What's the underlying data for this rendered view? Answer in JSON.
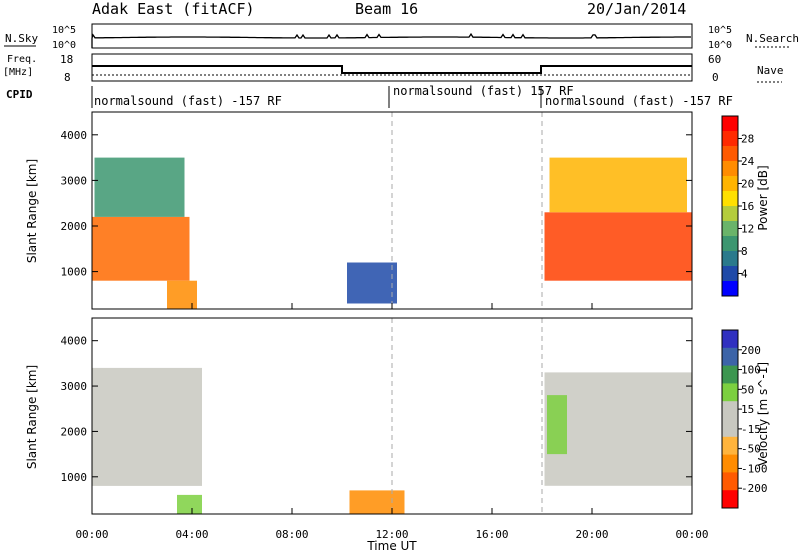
{
  "header": {
    "radar": "Adak East (fitACF)",
    "beam": "Beam 16",
    "date": "20/Jan/2014"
  },
  "strip_labels": {
    "nsky": "N.Sky",
    "nsky_ticks": [
      "10^5",
      "10^0"
    ],
    "nsearch": "N.Search",
    "nsearch_ticks": [
      "10^5",
      "10^0"
    ],
    "freq_line1": "Freq.",
    "freq_line2": "[MHz]",
    "freq_ticks": [
      "18",
      "8"
    ],
    "nave": "Nave",
    "nave_ticks": [
      "60",
      "0"
    ],
    "cpid": "CPID"
  },
  "cpid_segments": [
    {
      "start_h": 0,
      "end_h": 12,
      "label": "normalsound (fast) -157 RF"
    },
    {
      "start_h": 12,
      "end_h": 18,
      "label": "normalsound (fast) 157 RF"
    },
    {
      "start_h": 18,
      "end_h": 24,
      "label": "normalsound (fast) -157 RF"
    }
  ],
  "chart_data": [
    {
      "type": "heatmap",
      "panel": "power",
      "xlabel": "",
      "ylabel": "Slant Range [km]",
      "xlim": [
        0,
        24
      ],
      "ylim": [
        180,
        4500
      ],
      "yticks": [
        1000,
        2000,
        3000,
        4000
      ],
      "colorbar_label": "Power [dB]",
      "colorbar_ticks": [
        "28",
        "24",
        "20",
        "16",
        "12",
        "8",
        "4"
      ],
      "colorbar_colors": [
        "#ff0000",
        "#ff2a00",
        "#ff5a00",
        "#ff8c00",
        "#ffb400",
        "#ffe000",
        "#b4cc3c",
        "#6ab46a",
        "#3c9670",
        "#2a7a8c",
        "#1f4aa8",
        "#0000ff"
      ],
      "regions": [
        {
          "name": "morning-band",
          "t0": 0.0,
          "t1": 3.9,
          "r0": 800,
          "r1": 2200,
          "fill": "#ff6a00"
        },
        {
          "name": "morning-upper",
          "t0": 0.1,
          "t1": 3.7,
          "r0": 2200,
          "r1": 3500,
          "fill": "#3c9670"
        },
        {
          "name": "morning-foot",
          "t0": 3.0,
          "t1": 4.2,
          "r0": 180,
          "r1": 800,
          "fill": "#ff8c00"
        },
        {
          "name": "midday-patch",
          "t0": 10.2,
          "t1": 12.2,
          "r0": 300,
          "r1": 1200,
          "fill": "#1f4aa8"
        },
        {
          "name": "evening-band",
          "t0": 18.1,
          "t1": 24.0,
          "r0": 800,
          "r1": 2300,
          "fill": "#ff4000"
        },
        {
          "name": "evening-upper",
          "t0": 18.3,
          "t1": 23.8,
          "r0": 2300,
          "r1": 3500,
          "fill": "#ffb400"
        }
      ]
    },
    {
      "type": "heatmap",
      "panel": "velocity",
      "xlabel": "Time UT",
      "ylabel": "Slant Range [km]",
      "xlim": [
        0,
        24
      ],
      "ylim": [
        180,
        4500
      ],
      "yticks": [
        1000,
        2000,
        3000,
        4000
      ],
      "xticks": [
        "00:00",
        "04:00",
        "08:00",
        "12:00",
        "16:00",
        "20:00",
        "00:00"
      ],
      "colorbar_label": "Velocity [m s^-1]",
      "colorbar_ticks": [
        "200",
        "100",
        "50",
        "15",
        "-15",
        "-50",
        "-100",
        "-200"
      ],
      "colorbar_colors": [
        "#3030c0",
        "#3c64a8",
        "#3c9650",
        "#7cd040",
        "#c8c8c0",
        "#c8c8c0",
        "#ffb43c",
        "#ff8c00",
        "#ff5a00",
        "#ff0000"
      ],
      "regions": [
        {
          "name": "morning-grey",
          "t0": 0.0,
          "t1": 4.4,
          "r0": 800,
          "r1": 3400,
          "fill": "#c8c8c0"
        },
        {
          "name": "morning-foot",
          "t0": 3.4,
          "t1": 4.4,
          "r0": 180,
          "r1": 600,
          "fill": "#7cd040"
        },
        {
          "name": "midday-patch",
          "t0": 10.3,
          "t1": 12.5,
          "r0": 180,
          "r1": 700,
          "fill": "#ff8c00"
        },
        {
          "name": "evening-grey",
          "t0": 18.1,
          "t1": 24.0,
          "r0": 800,
          "r1": 3300,
          "fill": "#c8c8c0"
        },
        {
          "name": "evening-green",
          "t0": 18.2,
          "t1": 19.0,
          "r0": 1500,
          "r1": 2800,
          "fill": "#7cd040"
        }
      ]
    }
  ]
}
